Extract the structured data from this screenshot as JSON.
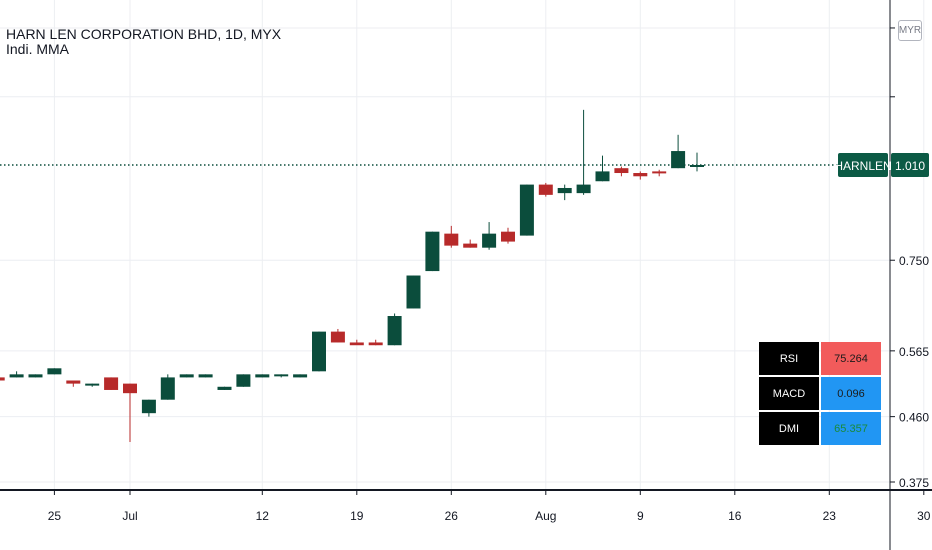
{
  "header": {
    "title": "HARN LEN CORPORATION BHD, 1D, MYX",
    "indicator_label": "Indi. MMA"
  },
  "currency_badge": "MYR",
  "price_marker": {
    "symbol": "HARNLEN",
    "value": "1.010",
    "color": "#0b5a45"
  },
  "colors": {
    "up": "#0b4d3c",
    "down": "#b72a2a",
    "grid": "#eceef2",
    "dotted_line": "#0b4d3c"
  },
  "indicator_table": [
    {
      "name": "RSI",
      "value": "75.264",
      "style": "red",
      "value_color": "#1b1b1b"
    },
    {
      "name": "MACD",
      "value": "0.096",
      "style": "blue",
      "value_color": "#1b1b1b"
    },
    {
      "name": "DMI",
      "value": "65.357",
      "style": "blue",
      "value_color": "#1b8a3a"
    }
  ],
  "chart_data": {
    "type": "candlestick",
    "title": "HARN LEN CORPORATION BHD, 1D, MYX",
    "y_axis": {
      "scale": "log",
      "ticks": [
        "0.375",
        "0.460",
        "0.565",
        "0.750"
      ]
    },
    "x_axis": {
      "ticks": [
        "25",
        "Jul",
        "12",
        "19",
        "26",
        "Aug",
        "9",
        "16",
        "23",
        "30"
      ]
    },
    "last_price": 1.01,
    "candles": [
      {
        "date": "2021-06-22",
        "open": 0.52,
        "high": 0.52,
        "low": 0.515,
        "close": 0.515
      },
      {
        "date": "2021-06-23",
        "open": 0.52,
        "high": 0.53,
        "low": 0.52,
        "close": 0.525
      },
      {
        "date": "2021-06-24",
        "open": 0.52,
        "high": 0.525,
        "low": 0.52,
        "close": 0.525
      },
      {
        "date": "2021-06-25",
        "open": 0.525,
        "high": 0.535,
        "low": 0.525,
        "close": 0.535
      },
      {
        "date": "2021-06-28",
        "open": 0.515,
        "high": 0.515,
        "low": 0.505,
        "close": 0.51
      },
      {
        "date": "2021-06-29",
        "open": 0.51,
        "high": 0.51,
        "low": 0.505,
        "close": 0.51
      },
      {
        "date": "2021-06-30",
        "open": 0.52,
        "high": 0.52,
        "low": 0.5,
        "close": 0.5
      },
      {
        "date": "2021-07-01",
        "open": 0.51,
        "high": 0.51,
        "low": 0.425,
        "close": 0.495
      },
      {
        "date": "2021-07-02",
        "open": 0.465,
        "high": 0.485,
        "low": 0.46,
        "close": 0.485
      },
      {
        "date": "2021-07-05",
        "open": 0.485,
        "high": 0.525,
        "low": 0.485,
        "close": 0.52
      },
      {
        "date": "2021-07-06",
        "open": 0.52,
        "high": 0.525,
        "low": 0.52,
        "close": 0.525
      },
      {
        "date": "2021-07-07",
        "open": 0.52,
        "high": 0.525,
        "low": 0.52,
        "close": 0.525
      },
      {
        "date": "2021-07-08",
        "open": 0.5,
        "high": 0.505,
        "low": 0.5,
        "close": 0.505
      },
      {
        "date": "2021-07-09",
        "open": 0.505,
        "high": 0.525,
        "low": 0.505,
        "close": 0.525
      },
      {
        "date": "2021-07-12",
        "open": 0.52,
        "high": 0.525,
        "low": 0.52,
        "close": 0.525
      },
      {
        "date": "2021-07-13",
        "open": 0.525,
        "high": 0.525,
        "low": 0.52,
        "close": 0.525
      },
      {
        "date": "2021-07-14",
        "open": 0.52,
        "high": 0.525,
        "low": 0.52,
        "close": 0.525
      },
      {
        "date": "2021-07-15",
        "open": 0.53,
        "high": 0.6,
        "low": 0.53,
        "close": 0.6
      },
      {
        "date": "2021-07-16",
        "open": 0.6,
        "high": 0.605,
        "low": 0.58,
        "close": 0.58
      },
      {
        "date": "2021-07-19",
        "open": 0.58,
        "high": 0.585,
        "low": 0.58,
        "close": 0.575
      },
      {
        "date": "2021-07-20",
        "open": 0.58,
        "high": 0.585,
        "low": 0.575,
        "close": 0.575
      },
      {
        "date": "2021-07-21",
        "open": 0.575,
        "high": 0.635,
        "low": 0.575,
        "close": 0.63
      },
      {
        "date": "2021-07-22",
        "open": 0.645,
        "high": 0.715,
        "low": 0.645,
        "close": 0.715
      },
      {
        "date": "2021-07-23",
        "open": 0.725,
        "high": 0.82,
        "low": 0.725,
        "close": 0.82
      },
      {
        "date": "2021-07-26",
        "open": 0.815,
        "high": 0.835,
        "low": 0.78,
        "close": 0.785
      },
      {
        "date": "2021-07-27",
        "open": 0.79,
        "high": 0.8,
        "low": 0.78,
        "close": 0.78
      },
      {
        "date": "2021-07-28",
        "open": 0.78,
        "high": 0.845,
        "low": 0.775,
        "close": 0.815
      },
      {
        "date": "2021-07-29",
        "open": 0.82,
        "high": 0.83,
        "low": 0.79,
        "close": 0.795
      },
      {
        "date": "2021-07-30",
        "open": 0.81,
        "high": 0.95,
        "low": 0.81,
        "close": 0.95
      },
      {
        "date": "2021-08-02",
        "open": 0.95,
        "high": 0.955,
        "low": 0.915,
        "close": 0.92
      },
      {
        "date": "2021-08-03",
        "open": 0.925,
        "high": 0.95,
        "low": 0.905,
        "close": 0.94
      },
      {
        "date": "2021-08-04",
        "open": 0.925,
        "high": 1.2,
        "low": 0.92,
        "close": 0.95
      },
      {
        "date": "2021-08-05",
        "open": 0.96,
        "high": 1.04,
        "low": 0.96,
        "close": 0.99
      },
      {
        "date": "2021-08-06",
        "open": 1.0,
        "high": 1.005,
        "low": 0.975,
        "close": 0.985
      },
      {
        "date": "2021-08-09",
        "open": 0.985,
        "high": 0.99,
        "low": 0.965,
        "close": 0.975
      },
      {
        "date": "2021-08-10",
        "open": 0.99,
        "high": 0.995,
        "low": 0.975,
        "close": 0.985
      },
      {
        "date": "2021-08-11",
        "open": 1.0,
        "high": 1.11,
        "low": 1.0,
        "close": 1.055
      },
      {
        "date": "2021-08-12",
        "open": 1.01,
        "high": 1.05,
        "low": 0.99,
        "close": 1.01
      }
    ]
  }
}
